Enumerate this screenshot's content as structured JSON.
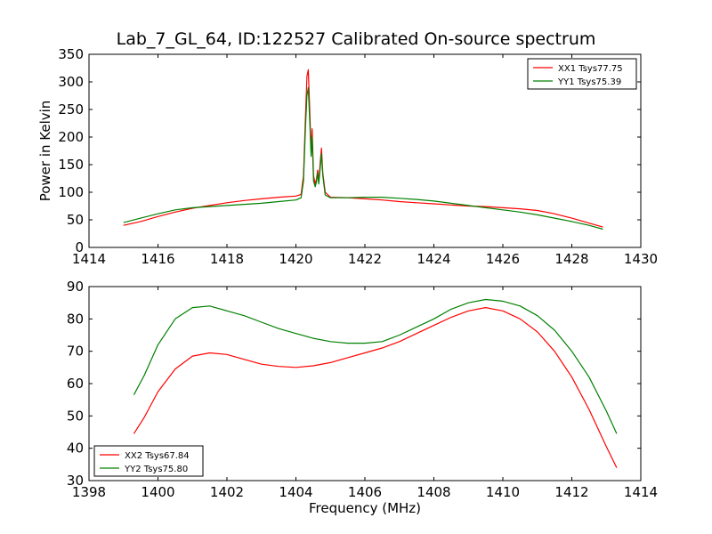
{
  "title": "Lab_7_GL_64, ID:122527 Calibrated On-source spectrum",
  "colors": {
    "red": "#ff0000",
    "green": "#008000"
  },
  "chart_data": [
    {
      "type": "line",
      "ylabel": "Power in Kelvin",
      "xlabel": "",
      "xlim": [
        1414,
        1430
      ],
      "ylim": [
        0,
        350
      ],
      "xticks": [
        "1414",
        "1416",
        "1418",
        "1420",
        "1422",
        "1424",
        "1426",
        "1428",
        "1430"
      ],
      "yticks": [
        "0",
        "50",
        "100",
        "150",
        "200",
        "250",
        "300",
        "350"
      ],
      "legend_position": "top-right",
      "series": [
        {
          "name": "XX1 Tsys77.75",
          "color": "#ff0000",
          "points": [
            [
              1415.0,
              40
            ],
            [
              1415.5,
              47
            ],
            [
              1416.0,
              56
            ],
            [
              1416.5,
              64
            ],
            [
              1417.0,
              71
            ],
            [
              1417.5,
              76
            ],
            [
              1418.0,
              81
            ],
            [
              1418.5,
              85
            ],
            [
              1419.0,
              88
            ],
            [
              1419.5,
              91
            ],
            [
              1420.0,
              93
            ],
            [
              1420.15,
              96
            ],
            [
              1420.22,
              130
            ],
            [
              1420.28,
              240
            ],
            [
              1420.32,
              310
            ],
            [
              1420.36,
              322
            ],
            [
              1420.4,
              250
            ],
            [
              1420.44,
              175
            ],
            [
              1420.47,
              215
            ],
            [
              1420.51,
              130
            ],
            [
              1420.56,
              115
            ],
            [
              1420.6,
              125
            ],
            [
              1420.63,
              140
            ],
            [
              1420.66,
              120
            ],
            [
              1420.7,
              150
            ],
            [
              1420.74,
              180
            ],
            [
              1420.78,
              135
            ],
            [
              1420.85,
              100
            ],
            [
              1421.0,
              91
            ],
            [
              1421.5,
              90
            ],
            [
              1422.0,
              88
            ],
            [
              1422.5,
              86
            ],
            [
              1423.0,
              83
            ],
            [
              1423.5,
              81
            ],
            [
              1424.0,
              79
            ],
            [
              1424.5,
              77
            ],
            [
              1425.0,
              75
            ],
            [
              1425.5,
              74
            ],
            [
              1426.0,
              72
            ],
            [
              1426.5,
              70
            ],
            [
              1427.0,
              67
            ],
            [
              1427.5,
              61
            ],
            [
              1428.0,
              53
            ],
            [
              1428.5,
              44
            ],
            [
              1428.9,
              37
            ]
          ]
        },
        {
          "name": "YY1 Tsys75.39",
          "color": "#008000",
          "points": [
            [
              1415.0,
              45
            ],
            [
              1415.5,
              53
            ],
            [
              1416.0,
              61
            ],
            [
              1416.5,
              68
            ],
            [
              1417.0,
              72
            ],
            [
              1417.5,
              74
            ],
            [
              1418.0,
              76
            ],
            [
              1418.5,
              78
            ],
            [
              1419.0,
              80
            ],
            [
              1419.5,
              83
            ],
            [
              1420.0,
              86
            ],
            [
              1420.15,
              90
            ],
            [
              1420.22,
              120
            ],
            [
              1420.28,
              220
            ],
            [
              1420.32,
              275
            ],
            [
              1420.36,
              290
            ],
            [
              1420.4,
              230
            ],
            [
              1420.44,
              165
            ],
            [
              1420.47,
              200
            ],
            [
              1420.51,
              120
            ],
            [
              1420.56,
              110
            ],
            [
              1420.6,
              120
            ],
            [
              1420.63,
              135
            ],
            [
              1420.66,
              115
            ],
            [
              1420.7,
              140
            ],
            [
              1420.74,
              170
            ],
            [
              1420.78,
              130
            ],
            [
              1420.85,
              95
            ],
            [
              1421.0,
              90
            ],
            [
              1421.5,
              90
            ],
            [
              1422.0,
              91
            ],
            [
              1422.5,
              91
            ],
            [
              1423.0,
              89
            ],
            [
              1423.5,
              87
            ],
            [
              1424.0,
              84
            ],
            [
              1424.5,
              80
            ],
            [
              1425.0,
              76
            ],
            [
              1425.5,
              72
            ],
            [
              1426.0,
              68
            ],
            [
              1426.5,
              64
            ],
            [
              1427.0,
              59
            ],
            [
              1427.5,
              53
            ],
            [
              1428.0,
              47
            ],
            [
              1428.5,
              40
            ],
            [
              1428.9,
              33
            ]
          ]
        }
      ]
    },
    {
      "type": "line",
      "ylabel": "",
      "xlabel": "Frequency (MHz)",
      "xlim": [
        1398,
        1414
      ],
      "ylim": [
        30,
        90
      ],
      "xticks": [
        "1398",
        "1400",
        "1402",
        "1404",
        "1406",
        "1408",
        "1410",
        "1412",
        "1414"
      ],
      "yticks": [
        "30",
        "40",
        "50",
        "60",
        "70",
        "80",
        "90"
      ],
      "legend_position": "bottom-left",
      "series": [
        {
          "name": "XX2 Tsys67.84",
          "color": "#ff0000",
          "points": [
            [
              1399.3,
              44.5
            ],
            [
              1399.6,
              49.5
            ],
            [
              1400.0,
              57.5
            ],
            [
              1400.5,
              64.5
            ],
            [
              1401.0,
              68.5
            ],
            [
              1401.5,
              69.5
            ],
            [
              1402.0,
              69.0
            ],
            [
              1402.5,
              67.5
            ],
            [
              1403.0,
              66.0
            ],
            [
              1403.5,
              65.3
            ],
            [
              1404.0,
              65.0
            ],
            [
              1404.5,
              65.5
            ],
            [
              1405.0,
              66.5
            ],
            [
              1405.5,
              68.0
            ],
            [
              1406.0,
              69.5
            ],
            [
              1406.5,
              71.0
            ],
            [
              1407.0,
              73.0
            ],
            [
              1407.5,
              75.5
            ],
            [
              1408.0,
              78.0
            ],
            [
              1408.5,
              80.5
            ],
            [
              1409.0,
              82.5
            ],
            [
              1409.5,
              83.5
            ],
            [
              1410.0,
              82.5
            ],
            [
              1410.5,
              80.0
            ],
            [
              1411.0,
              76.0
            ],
            [
              1411.5,
              70.0
            ],
            [
              1412.0,
              62.0
            ],
            [
              1412.5,
              52.0
            ],
            [
              1413.0,
              40.5
            ],
            [
              1413.3,
              34.0
            ]
          ]
        },
        {
          "name": "YY2 Tsys75.80",
          "color": "#008000",
          "points": [
            [
              1399.3,
              56.5
            ],
            [
              1399.6,
              62.5
            ],
            [
              1400.0,
              72.0
            ],
            [
              1400.5,
              80.0
            ],
            [
              1401.0,
              83.5
            ],
            [
              1401.5,
              84.0
            ],
            [
              1402.0,
              82.5
            ],
            [
              1402.5,
              81.0
            ],
            [
              1403.0,
              79.0
            ],
            [
              1403.5,
              77.0
            ],
            [
              1404.0,
              75.5
            ],
            [
              1404.5,
              74.0
            ],
            [
              1405.0,
              73.0
            ],
            [
              1405.5,
              72.5
            ],
            [
              1406.0,
              72.5
            ],
            [
              1406.5,
              73.0
            ],
            [
              1407.0,
              75.0
            ],
            [
              1407.5,
              77.5
            ],
            [
              1408.0,
              80.0
            ],
            [
              1408.5,
              83.0
            ],
            [
              1409.0,
              85.0
            ],
            [
              1409.5,
              86.0
            ],
            [
              1410.0,
              85.5
            ],
            [
              1410.5,
              84.0
            ],
            [
              1411.0,
              81.0
            ],
            [
              1411.5,
              76.5
            ],
            [
              1412.0,
              70.0
            ],
            [
              1412.5,
              62.0
            ],
            [
              1413.0,
              51.5
            ],
            [
              1413.3,
              44.5
            ]
          ]
        }
      ]
    }
  ]
}
